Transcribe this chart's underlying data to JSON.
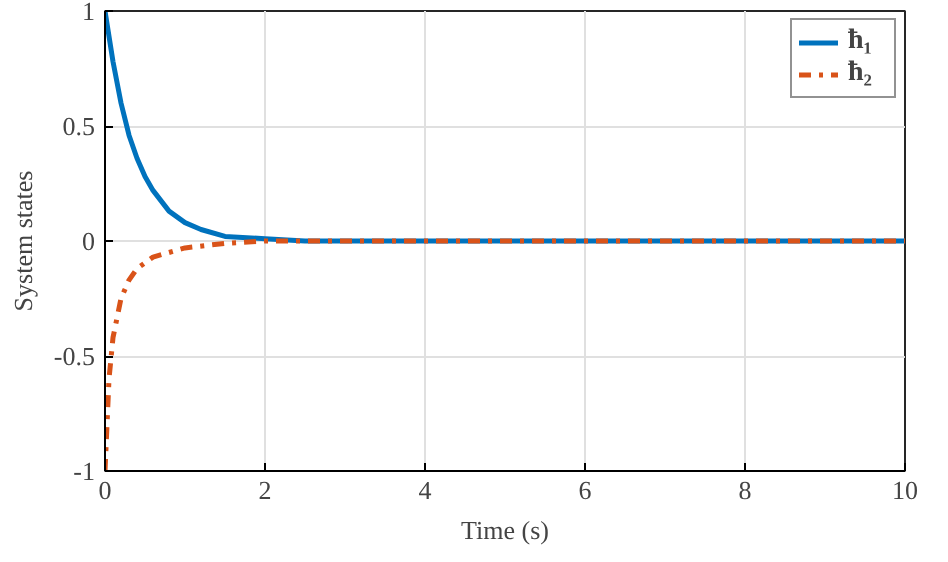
{
  "chart_data": {
    "type": "line",
    "xlabel": "Time (s)",
    "ylabel": "System states",
    "xlim": [
      0,
      10
    ],
    "ylim": [
      -1,
      1
    ],
    "xticks": [
      0,
      2,
      4,
      6,
      8,
      10
    ],
    "yticks": [
      {
        "value": -1,
        "label": "-1"
      },
      {
        "value": -0.5,
        "label": "-0.5"
      },
      0,
      0.5,
      1
    ],
    "grid": true,
    "legend": "top right",
    "series": [
      {
        "name": "ħ₁",
        "color": "#0072bd",
        "line_style": "solid",
        "x": [
          0,
          0.1,
          0.2,
          0.3,
          0.4,
          0.5,
          0.6,
          0.8,
          1.0,
          1.2,
          1.5,
          2.0,
          2.5,
          10
        ],
        "values": [
          1,
          0.78,
          0.6,
          0.46,
          0.36,
          0.28,
          0.22,
          0.13,
          0.08,
          0.05,
          0.02,
          0.01,
          0,
          0
        ]
      },
      {
        "name": "ħ₂",
        "color": "#d95319",
        "line_style": "dashdot",
        "x": [
          0,
          0.05,
          0.1,
          0.2,
          0.3,
          0.4,
          0.6,
          0.8,
          1.0,
          1.5,
          2.0,
          2.5,
          10
        ],
        "values": [
          -1,
          -0.6,
          -0.42,
          -0.25,
          -0.17,
          -0.12,
          -0.07,
          -0.05,
          -0.03,
          -0.01,
          0,
          0,
          0
        ]
      }
    ]
  }
}
